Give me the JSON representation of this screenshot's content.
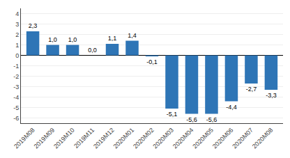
{
  "chart_data": {
    "type": "bar",
    "categories": [
      "2019M08",
      "2019M09",
      "2019M10",
      "2019M11",
      "2019M12",
      "2020M01",
      "2020M02",
      "2020M03",
      "2020M04",
      "2020M05",
      "2020M06",
      "2020M07",
      "2020M08"
    ],
    "values": [
      2.3,
      1.0,
      1.0,
      0.0,
      1.1,
      1.4,
      -0.1,
      -5.1,
      -5.6,
      -5.6,
      -4.4,
      -2.7,
      -3.3
    ],
    "value_labels": [
      "2,3",
      "1,0",
      "1,0",
      "0,0",
      "1,1",
      "1,4",
      "-0,1",
      "-5,1",
      "-5,6",
      "-5,6",
      "-4,4",
      "-2,7",
      "-3,3"
    ],
    "color": "#2E75B6",
    "ylim": [
      -6.5,
      4.5
    ],
    "yticks": [
      -6,
      -5,
      -4,
      -3,
      -2,
      -1,
      0,
      1,
      2,
      3,
      4
    ],
    "grid": true,
    "data_labels": true
  }
}
